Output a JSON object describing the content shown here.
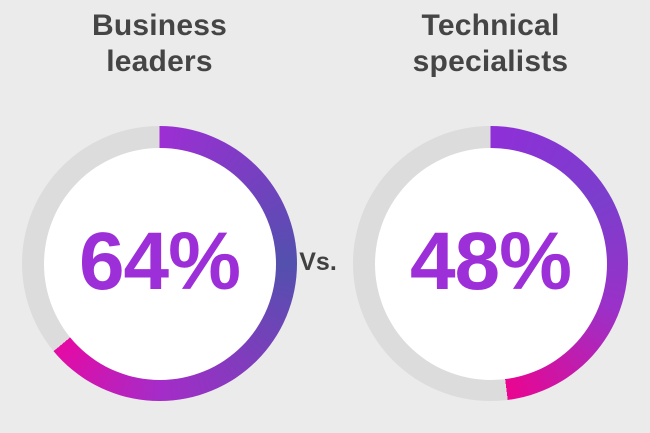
{
  "colors": {
    "background": "#ebebeb",
    "track": "#dcdcdc",
    "hole": "#ffffff",
    "title_text": "#454545",
    "vs_text": "#414141",
    "value_text": "#9d2fd9"
  },
  "chart_data": {
    "type": "pie",
    "subtype": "donut-percentage-comparison",
    "separator": "Vs.",
    "legend": "none",
    "charts": [
      {
        "title": "Business leaders",
        "title_lines": [
          "Business",
          "leaders"
        ],
        "value": 64,
        "unit": "%",
        "label": "64%",
        "start_angle_deg": 0,
        "direction": "clockwise",
        "gradient": [
          {
            "angle": 0,
            "color": "#9d2ed4"
          },
          {
            "angle": 90,
            "color": "#5350ae"
          },
          {
            "angle": 180,
            "color": "#a52cc8"
          },
          {
            "angle": 230.4,
            "color": "#e50aa4"
          }
        ]
      },
      {
        "title": "Technical specialists",
        "title_lines": [
          "Technical",
          "specialists"
        ],
        "value": 48,
        "unit": "%",
        "label": "48%",
        "start_angle_deg": 0,
        "direction": "clockwise",
        "gradient": [
          {
            "angle": 0,
            "color": "#8f2fd8"
          },
          {
            "angle": 60,
            "color": "#7b3ecc"
          },
          {
            "angle": 110,
            "color": "#9a31c8"
          },
          {
            "angle": 172.8,
            "color": "#ea0590"
          }
        ]
      }
    ]
  }
}
